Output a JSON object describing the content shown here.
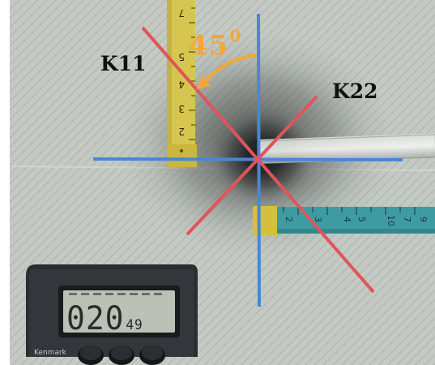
{
  "labels": {
    "k11": "K11",
    "k22": "K22",
    "angle_value": "45",
    "angle_unit": "0"
  },
  "timer": {
    "main": "020",
    "seconds": "49",
    "brand": "Kenmark"
  },
  "colors": {
    "background": "#c6cbc4",
    "crosshair_blue": "#4a86d6",
    "diagonal_red": "#e0545a",
    "angle_arrow": "#f5a63a",
    "tape_yellow": "#d9c64a",
    "tape_teal": "#3e9aa0",
    "timer_body": "#2b2d30",
    "lcd": "#bcc0b6"
  },
  "image": {
    "description": ""
  }
}
